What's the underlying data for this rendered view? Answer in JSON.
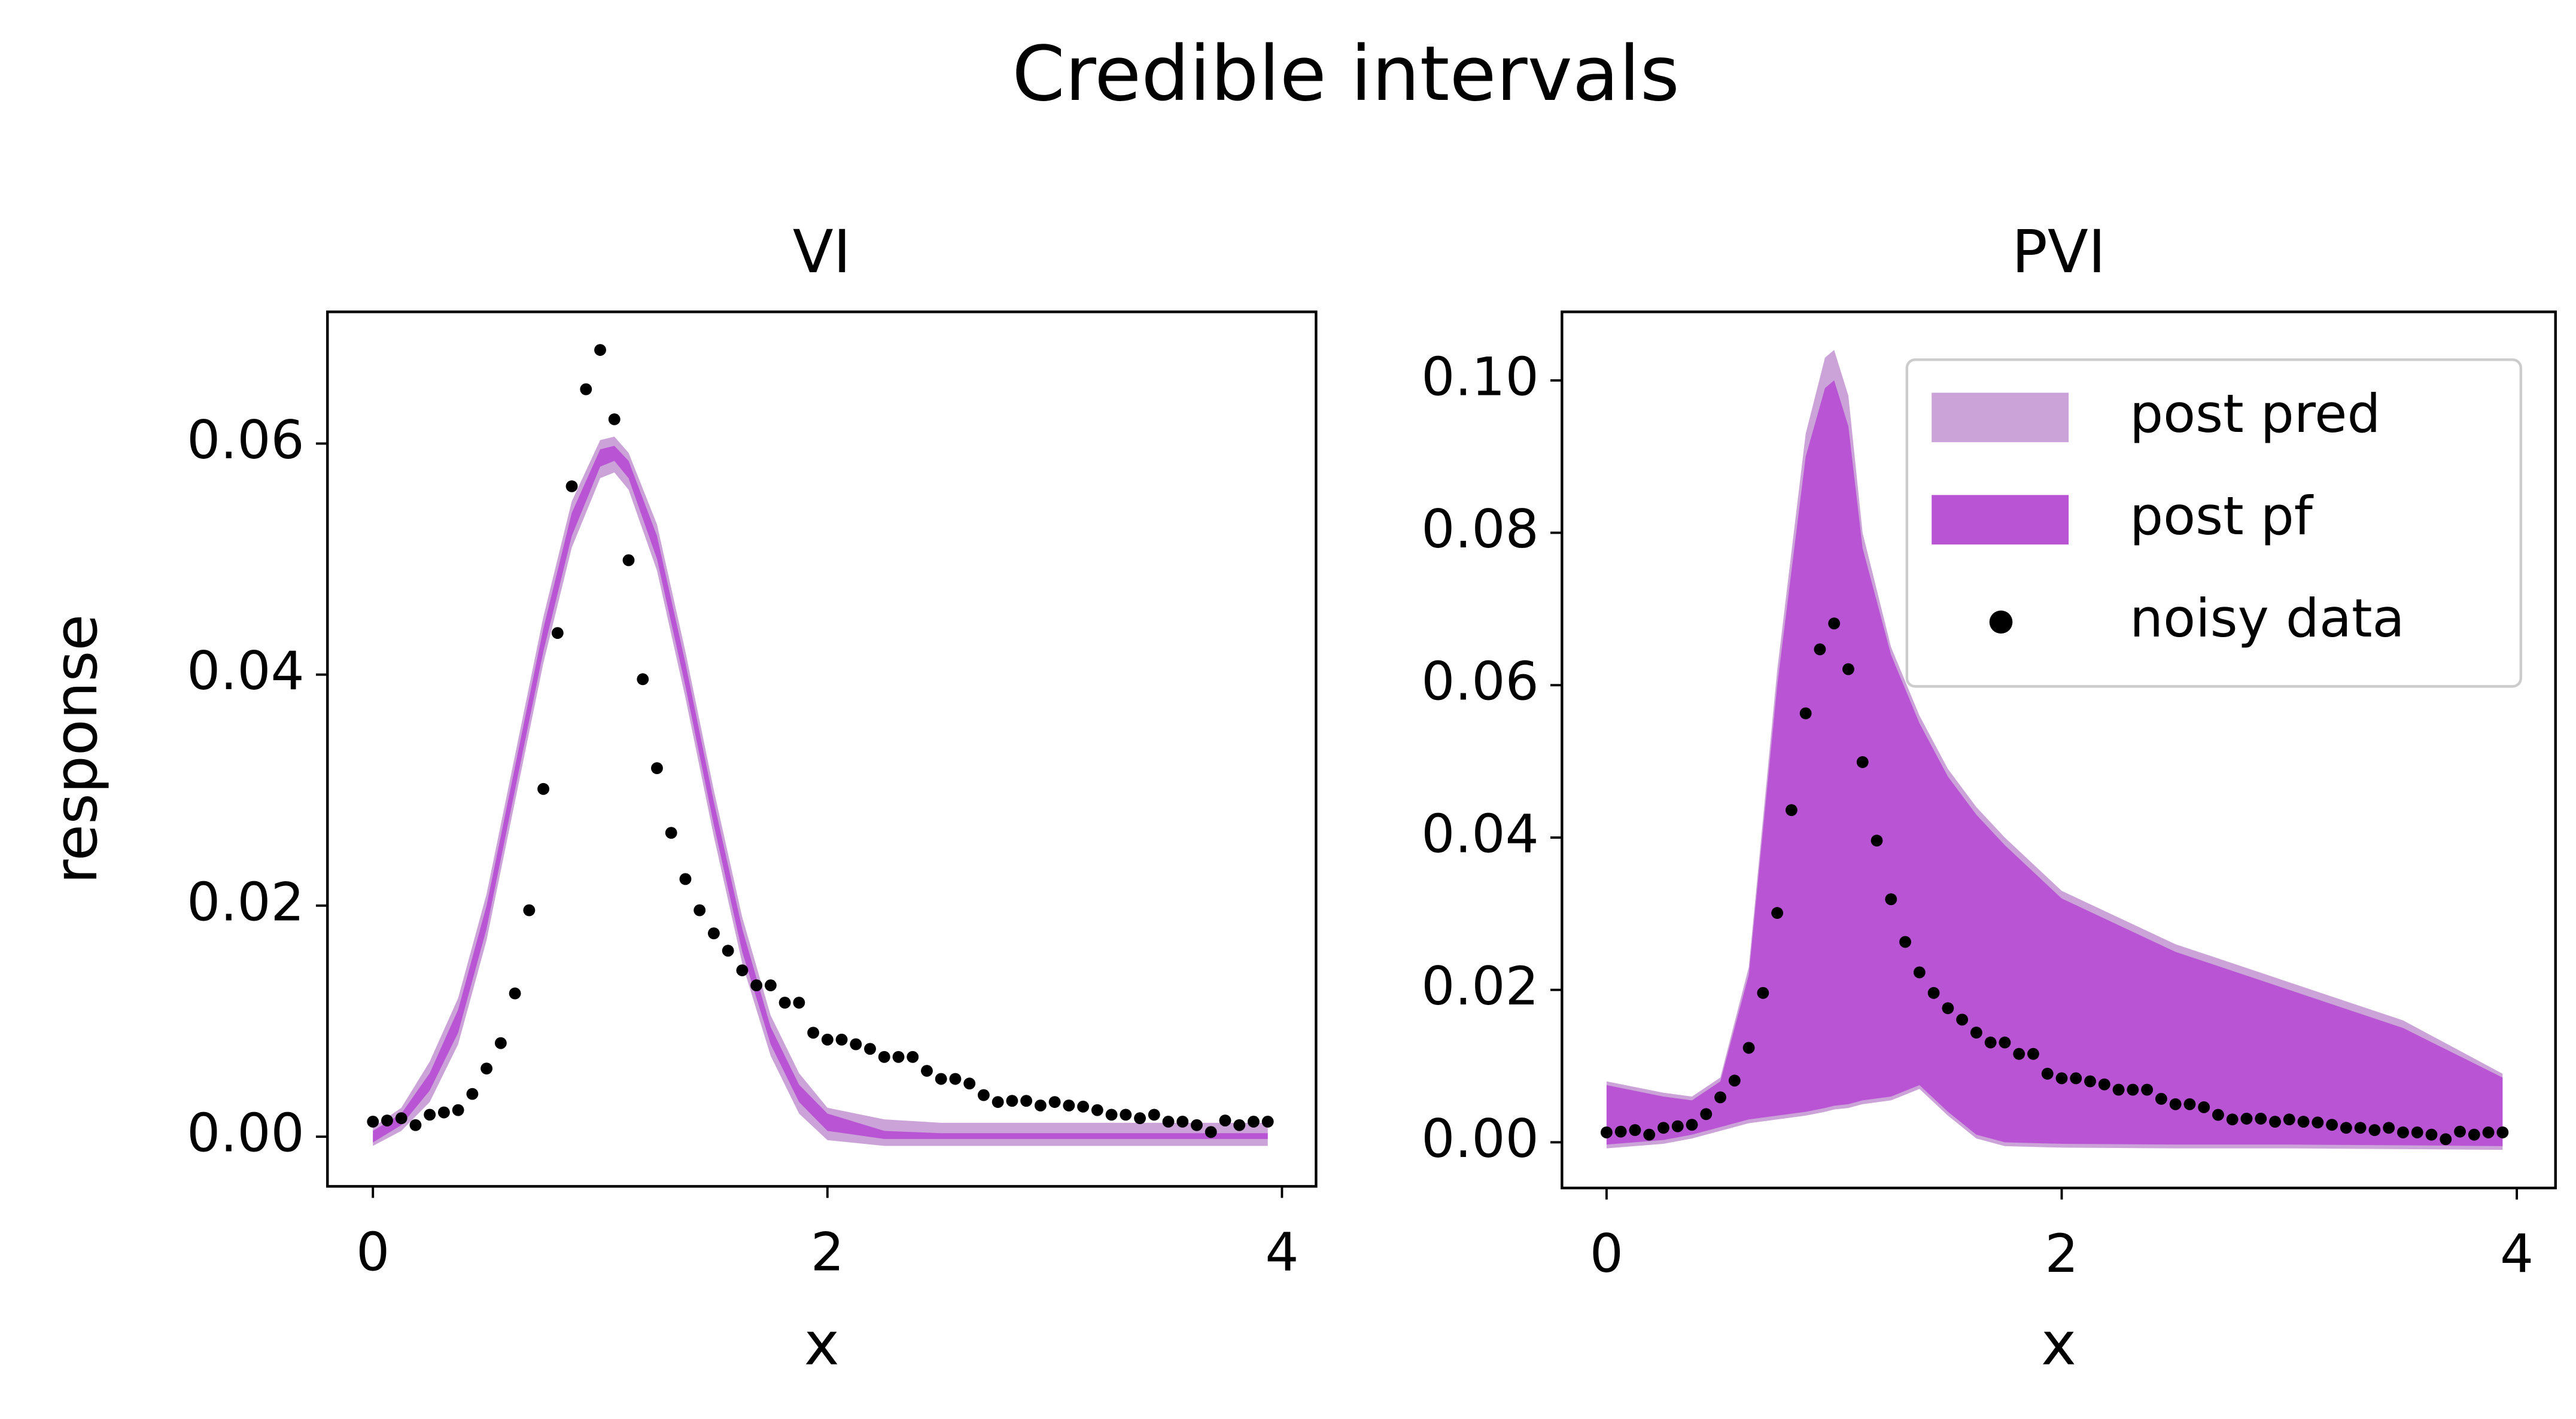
{
  "title": "Credible intervals",
  "chart_data": [
    {
      "type": "area",
      "title": "VI",
      "xlabel": "x",
      "ylabel": "response",
      "xlim": [
        -0.2,
        4.15
      ],
      "ylim": [
        -0.0043,
        0.0714
      ],
      "xticks": [
        0,
        2,
        4
      ],
      "yticks": [
        {
          "value": 0,
          "label": "0.00"
        },
        0.02,
        0.04,
        0.06
      ],
      "series": [
        {
          "color": "#cba3d8",
          "x": [
            0,
            0.125,
            0.25,
            0.375,
            0.5,
            0.625,
            0.75,
            0.875,
            1,
            1.0625,
            1.125,
            1.25,
            1.375,
            1.5,
            1.625,
            1.75,
            1.875,
            2,
            2.25,
            2.5,
            3,
            3.5,
            3.9375
          ],
          "lower": [
            -0.0008,
            0.0005,
            0.003,
            0.008,
            0.017,
            0.029,
            0.041,
            0.051,
            0.057,
            0.0575,
            0.056,
            0.049,
            0.038,
            0.026,
            0.015,
            0.007,
            0.002,
            -0.0003,
            -0.0008,
            -0.0008,
            -0.0008,
            -0.0008,
            -0.0008
          ],
          "upper": [
            0.0008,
            0.0025,
            0.0065,
            0.012,
            0.021,
            0.033,
            0.045,
            0.055,
            0.0603,
            0.0606,
            0.0592,
            0.053,
            0.042,
            0.03,
            0.019,
            0.0105,
            0.0055,
            0.0025,
            0.0015,
            0.0012,
            0.0012,
            0.0012,
            0.0012
          ]
        },
        {
          "color": "#b955d4",
          "x": [
            0,
            0.125,
            0.25,
            0.375,
            0.5,
            0.625,
            0.75,
            0.875,
            1,
            1.0625,
            1.125,
            1.25,
            1.375,
            1.5,
            1.625,
            1.75,
            1.875,
            2,
            2.25,
            2.5,
            3,
            3.5,
            3.9375
          ],
          "lower": [
            -0.0005,
            0.001,
            0.004,
            0.009,
            0.018,
            0.03,
            0.042,
            0.052,
            0.058,
            0.0585,
            0.057,
            0.05,
            0.039,
            0.027,
            0.016,
            0.008,
            0.003,
            0.0005,
            -0.0002,
            -0.0002,
            -0.0002,
            -0.0002,
            -0.0002
          ],
          "upper": [
            0.0005,
            0.002,
            0.0055,
            0.011,
            0.02,
            0.032,
            0.044,
            0.054,
            0.0595,
            0.0598,
            0.0585,
            0.052,
            0.041,
            0.029,
            0.018,
            0.0095,
            0.0045,
            0.002,
            0.0005,
            0.0003,
            0.0003,
            0.0003,
            0.0003
          ]
        },
        {
          "color": "#000000",
          "x": [
            0,
            0.0625,
            0.125,
            0.1875,
            0.25,
            0.3125,
            0.375,
            0.4375,
            0.5,
            0.5625,
            0.625,
            0.6875,
            0.75,
            0.8125,
            0.875,
            0.9375,
            1,
            1.0625,
            1.125,
            1.1875,
            1.25,
            1.3125,
            1.375,
            1.4375,
            1.5,
            1.5625,
            1.625,
            1.6875,
            1.75,
            1.8125,
            1.875,
            1.9375,
            2,
            2.0625,
            2.125,
            2.1875,
            2.25,
            2.3125,
            2.375,
            2.4375,
            2.5,
            2.5625,
            2.625,
            2.6875,
            2.75,
            2.8125,
            2.875,
            2.9375,
            3,
            3.0625,
            3.125,
            3.1875,
            3.25,
            3.3125,
            3.375,
            3.4375,
            3.5,
            3.5625,
            3.625,
            3.6875,
            3.75,
            3.8125,
            3.875,
            3.9375
          ],
          "values": [
            0.0013,
            0.0014,
            0.0016,
            0.001,
            0.0019,
            0.0021,
            0.0023,
            0.0037,
            0.0059,
            0.0081,
            0.0124,
            0.0196,
            0.0301,
            0.0436,
            0.0563,
            0.0647,
            0.0681,
            0.0621,
            0.0499,
            0.0396,
            0.0319,
            0.0263,
            0.0223,
            0.0196,
            0.0176,
            0.0161,
            0.0144,
            0.0131,
            0.0131,
            0.0116,
            0.0116,
            0.009,
            0.0084,
            0.0084,
            0.008,
            0.0076,
            0.0069,
            0.0069,
            0.0069,
            0.0057,
            0.005,
            0.005,
            0.0046,
            0.0036,
            0.003,
            0.0031,
            0.0031,
            0.0027,
            0.003,
            0.0027,
            0.0026,
            0.0023,
            0.0019,
            0.0019,
            0.0016,
            0.0019,
            0.0013,
            0.0013,
            0.001,
            0.0004,
            0.0014,
            0.001,
            0.0013,
            0.0013
          ]
        }
      ]
    },
    {
      "type": "area",
      "title": "PVI",
      "xlabel": "x",
      "legend": "upper right",
      "xlim": [
        -0.196,
        4.17
      ],
      "ylim": [
        -0.006,
        0.109
      ],
      "xticks": [
        0,
        2,
        4
      ],
      "yticks": [
        {
          "value": 0,
          "label": "0.00"
        },
        0.02,
        0.04,
        0.06,
        0.08,
        {
          "value": 0.1,
          "label": "0.10"
        }
      ],
      "series": [
        {
          "name": "post pred",
          "color": "#cba3d8",
          "x": [
            0,
            0.25,
            0.375,
            0.5,
            0.625,
            0.75,
            0.875,
            0.96,
            1,
            1.0625,
            1.125,
            1.25,
            1.375,
            1.5,
            1.625,
            1.75,
            2,
            2.5,
            3,
            3.5,
            3.9375
          ],
          "lower": [
            -0.0008,
            -0.0002,
            0.0005,
            0.0015,
            0.0025,
            0.003,
            0.0035,
            0.004,
            0.0043,
            0.0045,
            0.005,
            0.0055,
            0.007,
            0.0035,
            0.0005,
            -0.0005,
            -0.0007,
            -0.0008,
            -0.0008,
            -0.0009,
            -0.001
          ],
          "upper": [
            0.008,
            0.0065,
            0.006,
            0.0085,
            0.023,
            0.062,
            0.093,
            0.103,
            0.104,
            0.098,
            0.08,
            0.065,
            0.056,
            0.049,
            0.044,
            0.04,
            0.033,
            0.026,
            0.021,
            0.016,
            0.009
          ]
        },
        {
          "name": "post pf",
          "color": "#b955d4",
          "x": [
            0,
            0.25,
            0.375,
            0.5,
            0.625,
            0.75,
            0.875,
            0.96,
            1,
            1.0625,
            1.125,
            1.25,
            1.375,
            1.5,
            1.625,
            1.75,
            2,
            2.5,
            3,
            3.5,
            3.9375
          ],
          "lower": [
            -0.0003,
            0.0003,
            0.001,
            0.002,
            0.003,
            0.0035,
            0.004,
            0.0045,
            0.0048,
            0.005,
            0.0055,
            0.006,
            0.0075,
            0.004,
            0.001,
            0,
            -0.0002,
            -0.0003,
            -0.0003,
            -0.0004,
            -0.0005
          ],
          "upper": [
            0.0075,
            0.006,
            0.0055,
            0.008,
            0.022,
            0.06,
            0.09,
            0.099,
            0.1,
            0.094,
            0.078,
            0.064,
            0.055,
            0.048,
            0.043,
            0.039,
            0.032,
            0.025,
            0.02,
            0.015,
            0.0085
          ]
        },
        {
          "name": "noisy data",
          "color": "#000000",
          "x": [
            0,
            0.0625,
            0.125,
            0.1875,
            0.25,
            0.3125,
            0.375,
            0.4375,
            0.5,
            0.5625,
            0.625,
            0.6875,
            0.75,
            0.8125,
            0.875,
            0.9375,
            1,
            1.0625,
            1.125,
            1.1875,
            1.25,
            1.3125,
            1.375,
            1.4375,
            1.5,
            1.5625,
            1.625,
            1.6875,
            1.75,
            1.8125,
            1.875,
            1.9375,
            2,
            2.0625,
            2.125,
            2.1875,
            2.25,
            2.3125,
            2.375,
            2.4375,
            2.5,
            2.5625,
            2.625,
            2.6875,
            2.75,
            2.8125,
            2.875,
            2.9375,
            3,
            3.0625,
            3.125,
            3.1875,
            3.25,
            3.3125,
            3.375,
            3.4375,
            3.5,
            3.5625,
            3.625,
            3.6875,
            3.75,
            3.8125,
            3.875,
            3.9375
          ],
          "values": [
            0.0013,
            0.0014,
            0.0016,
            0.001,
            0.0019,
            0.0021,
            0.0023,
            0.0037,
            0.0059,
            0.0081,
            0.0124,
            0.0196,
            0.0301,
            0.0436,
            0.0563,
            0.0647,
            0.0681,
            0.0621,
            0.0499,
            0.0396,
            0.0319,
            0.0263,
            0.0223,
            0.0196,
            0.0176,
            0.0161,
            0.0144,
            0.0131,
            0.0131,
            0.0116,
            0.0116,
            0.009,
            0.0084,
            0.0084,
            0.008,
            0.0076,
            0.0069,
            0.0069,
            0.0069,
            0.0057,
            0.005,
            0.005,
            0.0046,
            0.0036,
            0.003,
            0.0031,
            0.0031,
            0.0027,
            0.003,
            0.0027,
            0.0026,
            0.0023,
            0.0019,
            0.0019,
            0.0016,
            0.0019,
            0.0013,
            0.0013,
            0.001,
            0.0004,
            0.0014,
            0.001,
            0.0013,
            0.0013
          ]
        }
      ]
    }
  ]
}
